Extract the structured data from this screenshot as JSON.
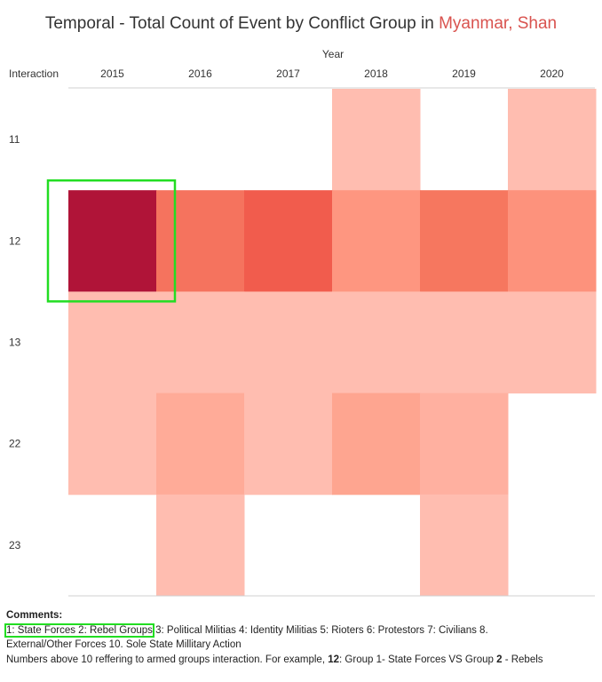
{
  "page": {
    "title_main": "Temporal - Total Count of Event by Conflict Group in ",
    "title_highlight": "Myanmar, Shan",
    "highlight_color": "#d9534f"
  },
  "chart_data": {
    "type": "heatmap",
    "x_header": "Year",
    "y_header": "Interaction",
    "columns": [
      "2015",
      "2016",
      "2017",
      "2018",
      "2019",
      "2020"
    ],
    "rows": [
      "11",
      "12",
      "13",
      "22",
      "23"
    ],
    "cells": [
      [
        "",
        "",
        "",
        "#ffbdb0",
        "",
        "#ffbdb0"
      ],
      [
        "#b01438",
        "#f5735e",
        "#f15c4d",
        "#fe9680",
        "#f6775f",
        "#fd927c"
      ],
      [
        "#ffbdb0",
        "#ffbdb0",
        "#ffbdb0",
        "#ffbdb0",
        "#ffbdb0",
        "#ffbdb0"
      ],
      [
        "#ffbdb0",
        "#ffab98",
        "#ffbdb0",
        "#fea590",
        "#ffb0a0",
        ""
      ],
      [
        "",
        "#ffbdb0",
        "",
        "",
        "#ffbdb0",
        ""
      ]
    ],
    "highlight_cell": {
      "row": "12",
      "column": "2015",
      "color": "#22dd22"
    },
    "grid": false
  },
  "comments": {
    "heading": "Comments:",
    "line1_boxed": "1: State Forces 2: Rebel Groups",
    "line1_rest": " 3: Political Militias 4: Identity Militias 5: Rioters 6: Protestors 7: Civilians 8.",
    "line2": "External/Other Forces 10. Sole State Millitary Action",
    "line3_a": "Numbers above 10 reffering to armed groups interaction. For example, ",
    "line3_bold": "12",
    "line3_b": ": Group 1- State Forces VS Group ",
    "line3_bold2": "2",
    "line3_c": " - Rebels"
  }
}
